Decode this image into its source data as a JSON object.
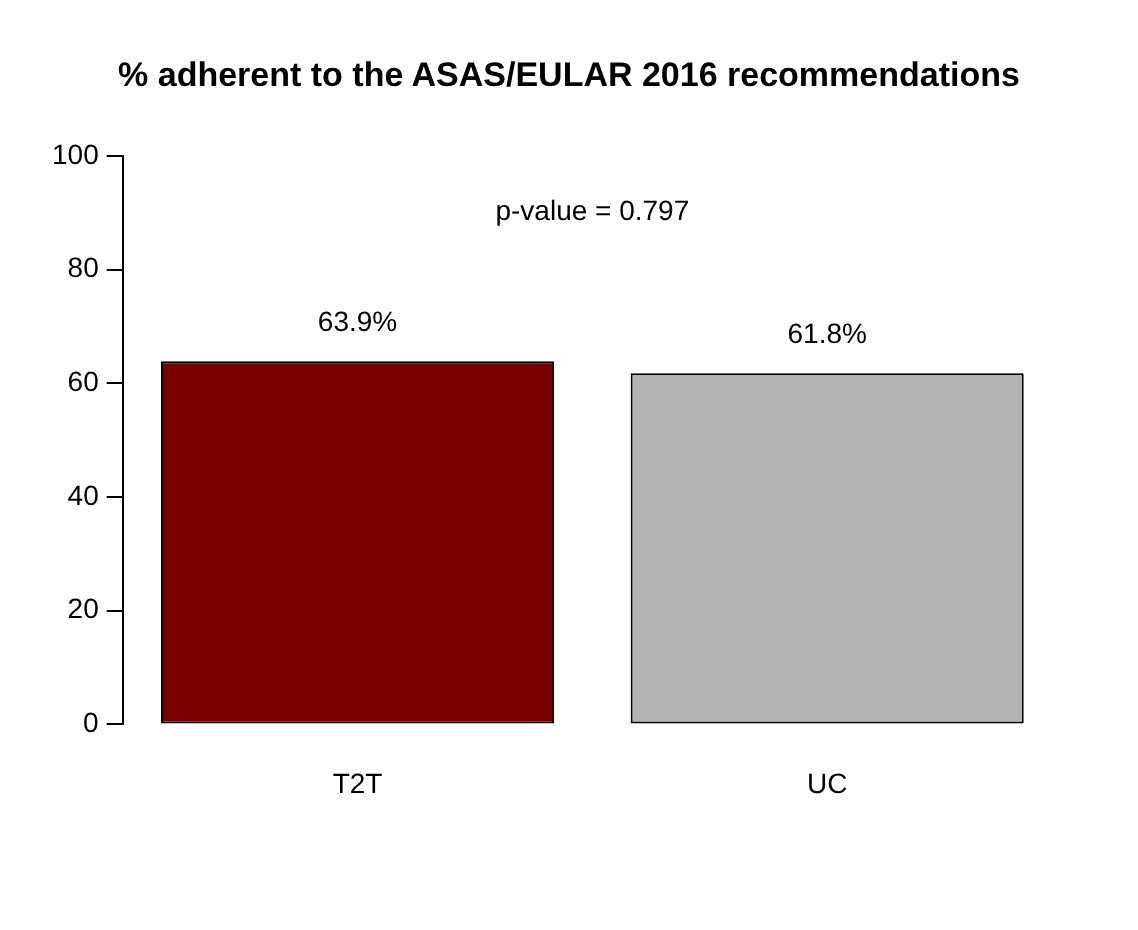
{
  "chart_data": {
    "type": "bar",
    "title": "% adherent to the ASAS/EULAR 2016 recommendations",
    "categories": [
      "T2T",
      "UC"
    ],
    "values": [
      63.9,
      61.8
    ],
    "colors": [
      "#780000",
      "#b3b3b3"
    ],
    "value_labels": [
      "63.9%",
      "61.8%"
    ],
    "annotations": [
      "p-value = 0.797"
    ],
    "ylim": [
      0,
      100
    ],
    "yticks": [
      0,
      20,
      40,
      60,
      80,
      100
    ],
    "grid": false,
    "legend": false
  }
}
